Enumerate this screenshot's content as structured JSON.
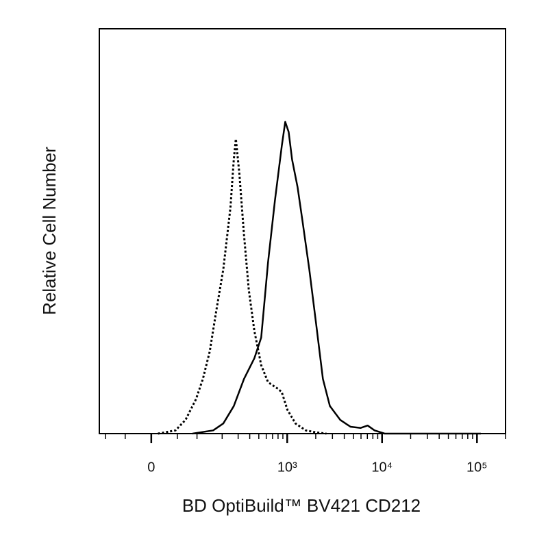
{
  "chart_data": {
    "type": "line",
    "x_label": "BD OptiBuild™ BV421 CD212",
    "y_label": "Relative Cell Number",
    "xscale": "biexponential",
    "linear_width": 74,
    "xlim": [
      -120,
      200000
    ],
    "ylim": [
      0,
      100
    ],
    "xticks": [
      0,
      {
        "value": 1000,
        "label": "10³"
      },
      {
        "value": 10000,
        "label": "10⁴"
      },
      {
        "value": 100000,
        "label": "10⁵"
      }
    ],
    "xminorticks": [
      -100,
      -50,
      50,
      100,
      200,
      300,
      400,
      500,
      600,
      700,
      800,
      900,
      2000,
      3000,
      4000,
      5000,
      6000,
      7000,
      8000,
      9000,
      20000,
      30000,
      40000,
      50000,
      60000,
      70000,
      80000,
      90000,
      200000
    ],
    "series": [
      {
        "color": "#000000",
        "dash": false,
        "x": [
          87,
          158,
          206,
          269,
          347,
          448,
          530,
          627,
          741,
          877,
          953,
          1036,
          1125,
          1287,
          1450,
          1710,
          2020,
          2380,
          2820,
          3620,
          4650,
          5960,
          7050,
          8330,
          10660,
          110000
        ],
        "values": [
          0,
          0.8,
          2.5,
          6.8,
          13.5,
          18.6,
          23.7,
          42.3,
          57.5,
          71.1,
          77.0,
          74.5,
          67.7,
          60.9,
          52.5,
          40.6,
          27.1,
          13.5,
          6.8,
          3.4,
          1.7,
          1.4,
          2.0,
          0.8,
          0,
          0
        ]
      },
      {
        "color": "#000000",
        "dash": true,
        "x": [
          12,
          25,
          46,
          69,
          97,
          119,
          144,
          172,
          206,
          247,
          269,
          283,
          309,
          347,
          391,
          448,
          530,
          627,
          717,
          807,
          877,
          1003,
          1224,
          1570,
          2020,
          2590
        ],
        "values": [
          0,
          0.3,
          0.8,
          3.4,
          8.5,
          13.5,
          20.3,
          30.5,
          40.6,
          55.8,
          67.7,
          72.8,
          64.3,
          49.1,
          35.5,
          25.4,
          16.9,
          12.7,
          11.8,
          11.0,
          10.2,
          5.9,
          2.5,
          0.8,
          0.3,
          0
        ]
      }
    ]
  }
}
